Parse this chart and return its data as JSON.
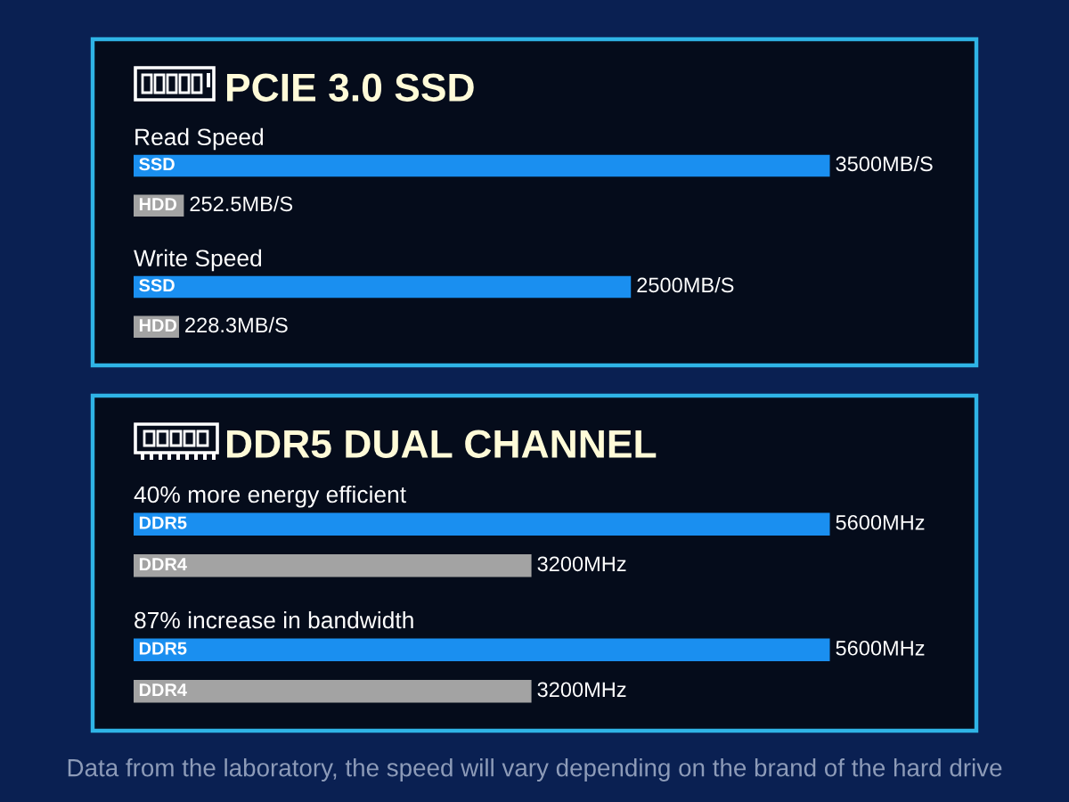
{
  "chart_data": [
    {
      "type": "bar",
      "orientation": "horizontal",
      "title": "PCIE 3.0 SSD",
      "tick_labels": "y",
      "categories": [
        "Read Speed",
        "Write Speed"
      ],
      "series": [
        {
          "name": "SSD",
          "color": "#1a8ff0",
          "values": [
            3500,
            2500
          ],
          "value_labels": [
            "3500MB/S",
            "2500MB/S"
          ]
        },
        {
          "name": "HDD",
          "color": "#a3a3a3",
          "values": [
            252.5,
            228.3
          ],
          "value_labels": [
            "252.5MB/S",
            "228.3MB/S"
          ]
        }
      ]
    },
    {
      "type": "bar",
      "orientation": "horizontal",
      "title": "DDR5 DUAL CHANNEL",
      "tick_labels": "y",
      "categories": [
        "40% more energy efficient",
        "87% increase in bandwidth"
      ],
      "series": [
        {
          "name": "DDR5",
          "color": "#1a8ff0",
          "values": [
            5600,
            5600
          ],
          "value_labels": [
            "5600MHz",
            "5600MHz"
          ]
        },
        {
          "name": "DDR4",
          "color": "#a3a3a3",
          "values": [
            3200,
            3200
          ],
          "value_labels": [
            "3200MHz",
            "3200MHz"
          ]
        }
      ],
      "annotations": [
        "Data from the laboratory, the speed will vary depending on the brand of the hard drive"
      ]
    }
  ]
}
